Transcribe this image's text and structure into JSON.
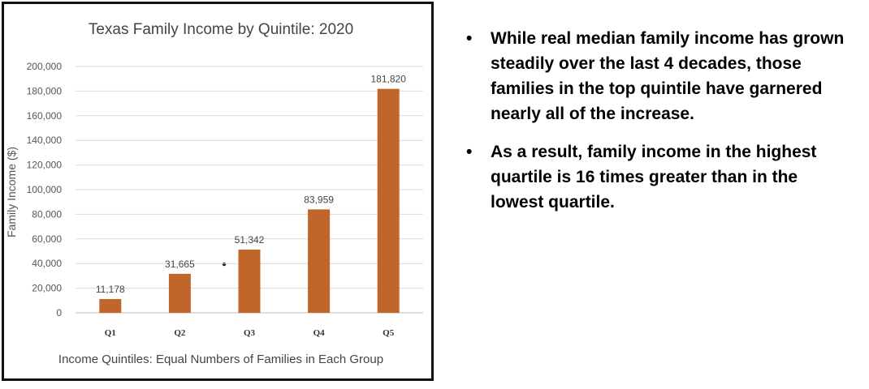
{
  "chart_data": {
    "type": "bar",
    "title": "Texas Family Income by Quintile: 2020",
    "ylabel": "Family Income ($)",
    "xlabel": "Income Quintiles: Equal Numbers of Families in Each Group",
    "categories": [
      "Q1",
      "Q2",
      "Q3",
      "Q4",
      "Q5"
    ],
    "values": [
      11178,
      31665,
      51342,
      83959,
      181820
    ],
    "value_labels": [
      "11,178",
      "31,665",
      "51,342",
      "83,959",
      "181,820"
    ],
    "ylim": [
      0,
      200000
    ],
    "yticks": [
      0,
      20000,
      40000,
      60000,
      80000,
      100000,
      120000,
      140000,
      160000,
      180000,
      200000
    ],
    "ytick_labels": [
      "0",
      "20,000",
      "40,000",
      "60,000",
      "80,000",
      "100,000",
      "120,000",
      "140,000",
      "160,000",
      "180,000",
      "200,000"
    ],
    "grid": true,
    "bar_color": "#c0662a"
  },
  "bullets": [
    "While real median family income has grown steadily over the last 4 decades, those families in the top quintile have garnered nearly all of the increase.",
    "As a result, family income in the highest quartile is 16 times greater than in the lowest quartile."
  ]
}
